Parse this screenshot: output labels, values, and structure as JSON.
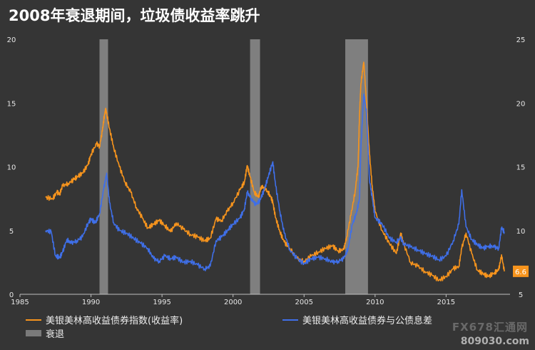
{
  "title": "2008年衰退期间，垃圾债收益率跳升",
  "chart_data": {
    "type": "line",
    "x_range": [
      1985,
      2019.5
    ],
    "x_ticks": [
      1985,
      1990,
      1995,
      2000,
      2005,
      2010,
      2015
    ],
    "y_left": {
      "range": [
        0,
        20
      ],
      "ticks": [
        0,
        5,
        10,
        15,
        20
      ]
    },
    "y_right": {
      "range": [
        5,
        25
      ],
      "ticks": [
        5,
        10,
        15,
        20,
        25
      ]
    },
    "grid": false,
    "legend_position": "bottom",
    "recessions": [
      [
        1990.6,
        1991.2
      ],
      [
        2001.2,
        2001.9
      ],
      [
        2007.9,
        2009.5
      ]
    ],
    "recession_label": "衰退",
    "end_label": "6.6",
    "series": [
      {
        "name": "美银美林高收益债券指数(收益率)",
        "axis": "left",
        "color": "#f7941d",
        "x": [
          1986.8,
          1987.3,
          1987.6,
          1987.8,
          1988.0,
          1988.4,
          1988.8,
          1989.0,
          1989.4,
          1989.8,
          1990.0,
          1990.4,
          1990.6,
          1990.8,
          1990.95,
          1991.05,
          1991.3,
          1991.6,
          1992.0,
          1992.4,
          1992.8,
          1993.2,
          1993.6,
          1994.0,
          1994.4,
          1994.8,
          1995.2,
          1995.6,
          1996.0,
          1996.5,
          1997.0,
          1997.5,
          1998.0,
          1998.4,
          1998.8,
          1999.2,
          1999.6,
          2000.0,
          2000.5,
          2000.8,
          2001.0,
          2001.2,
          2001.5,
          2001.8,
          2002.0,
          2002.3,
          2002.6,
          2002.8,
          2003.0,
          2003.3,
          2003.6,
          2004.0,
          2004.5,
          2005.0,
          2005.5,
          2006.0,
          2006.5,
          2007.0,
          2007.4,
          2007.8,
          2008.0,
          2008.3,
          2008.6,
          2008.8,
          2008.9,
          2009.0,
          2009.2,
          2009.4,
          2009.6,
          2009.8,
          2010.0,
          2010.5,
          2011.0,
          2011.5,
          2011.8,
          2012.0,
          2012.5,
          2013.0,
          2013.5,
          2014.0,
          2014.5,
          2015.0,
          2015.5,
          2015.9,
          2016.1,
          2016.4,
          2016.8,
          2017.2,
          2017.6,
          2018.0,
          2018.4,
          2018.7,
          2018.9,
          2019.1
        ],
        "values": [
          7.6,
          7.5,
          8.0,
          7.9,
          8.5,
          8.7,
          9.0,
          9.2,
          9.5,
          10.2,
          11.0,
          11.8,
          11.6,
          12.8,
          14.1,
          14.5,
          13.0,
          11.5,
          10.0,
          8.8,
          8.0,
          6.8,
          6.0,
          5.2,
          5.5,
          5.8,
          5.4,
          4.9,
          5.6,
          5.1,
          4.7,
          4.5,
          4.2,
          4.4,
          5.9,
          5.8,
          6.5,
          7.2,
          8.2,
          8.8,
          10.1,
          9.2,
          8.0,
          7.6,
          8.5,
          8.2,
          7.8,
          7.2,
          6.0,
          4.9,
          4.1,
          3.6,
          2.8,
          2.6,
          3.0,
          3.3,
          3.6,
          3.8,
          3.4,
          3.5,
          4.5,
          6.2,
          8.1,
          10.0,
          14.0,
          16.5,
          18.2,
          15.0,
          11.0,
          8.5,
          6.5,
          5.0,
          4.0,
          3.2,
          4.8,
          4.0,
          2.5,
          2.2,
          1.8,
          1.5,
          1.1,
          1.4,
          2.0,
          2.2,
          3.6,
          4.8,
          3.2,
          1.9,
          1.6,
          1.4,
          1.7,
          1.9,
          3.1,
          1.8
        ]
      },
      {
        "name": "美银美林高收益债券与公债息差",
        "axis": "right",
        "color": "#3f6fe8",
        "x": [
          1986.8,
          1987.2,
          1987.5,
          1987.8,
          1988.0,
          1988.3,
          1988.6,
          1989.0,
          1989.4,
          1989.8,
          1990.0,
          1990.3,
          1990.6,
          1990.9,
          1991.1,
          1991.3,
          1991.6,
          1992.0,
          1992.5,
          1993.0,
          1993.5,
          1994.0,
          1994.4,
          1994.8,
          1995.2,
          1995.6,
          1996.0,
          1996.5,
          1997.0,
          1997.5,
          1998.0,
          1998.4,
          1998.8,
          1999.2,
          1999.6,
          2000.0,
          2000.5,
          2000.8,
          2001.0,
          2001.3,
          2001.6,
          2001.9,
          2002.2,
          2002.5,
          2002.8,
          2003.0,
          2003.3,
          2003.6,
          2004.0,
          2004.5,
          2005.0,
          2005.5,
          2006.0,
          2006.5,
          2007.0,
          2007.4,
          2007.8,
          2008.1,
          2008.4,
          2008.7,
          2008.9,
          2009.0,
          2009.2,
          2009.4,
          2009.6,
          2009.8,
          2010.0,
          2010.5,
          2011.0,
          2011.5,
          2011.8,
          2012.0,
          2012.5,
          2013.0,
          2013.5,
          2014.0,
          2014.5,
          2015.0,
          2015.5,
          2015.9,
          2016.1,
          2016.4,
          2016.8,
          2017.2,
          2017.6,
          2018.0,
          2018.4,
          2018.7,
          2018.9,
          2019.1
        ],
        "values": [
          10.0,
          9.9,
          8.0,
          7.9,
          8.3,
          9.3,
          9.0,
          9.2,
          9.5,
          10.6,
          10.9,
          10.6,
          11.3,
          13.3,
          14.5,
          12.2,
          10.6,
          10.0,
          9.8,
          9.4,
          9.0,
          8.6,
          7.8,
          7.6,
          8.0,
          7.8,
          7.9,
          7.5,
          7.6,
          7.3,
          7.0,
          7.2,
          9.2,
          9.5,
          10.0,
          10.5,
          11.0,
          11.7,
          13.0,
          12.5,
          12.0,
          12.4,
          13.2,
          14.3,
          15.4,
          13.5,
          11.5,
          9.8,
          8.5,
          7.8,
          7.4,
          7.8,
          7.9,
          7.8,
          7.5,
          7.6,
          7.8,
          8.6,
          10.5,
          11.4,
          12.5,
          16.4,
          20.7,
          19.2,
          14.0,
          12.6,
          11.0,
          10.5,
          9.4,
          9.1,
          9.4,
          9.0,
          8.7,
          8.5,
          8.2,
          8.0,
          7.7,
          8.0,
          9.2,
          10.5,
          13.2,
          10.3,
          9.3,
          8.9,
          8.6,
          8.8,
          8.7,
          8.6,
          10.2,
          9.9
        ]
      }
    ]
  },
  "legend": {
    "series1": "美银美林高收益债券指数(收益率)",
    "series2": "美银美林高收益债券与公债息差",
    "recession": "衰退"
  },
  "watermark": "809030.com",
  "watermark_logo": "FX678汇通网"
}
